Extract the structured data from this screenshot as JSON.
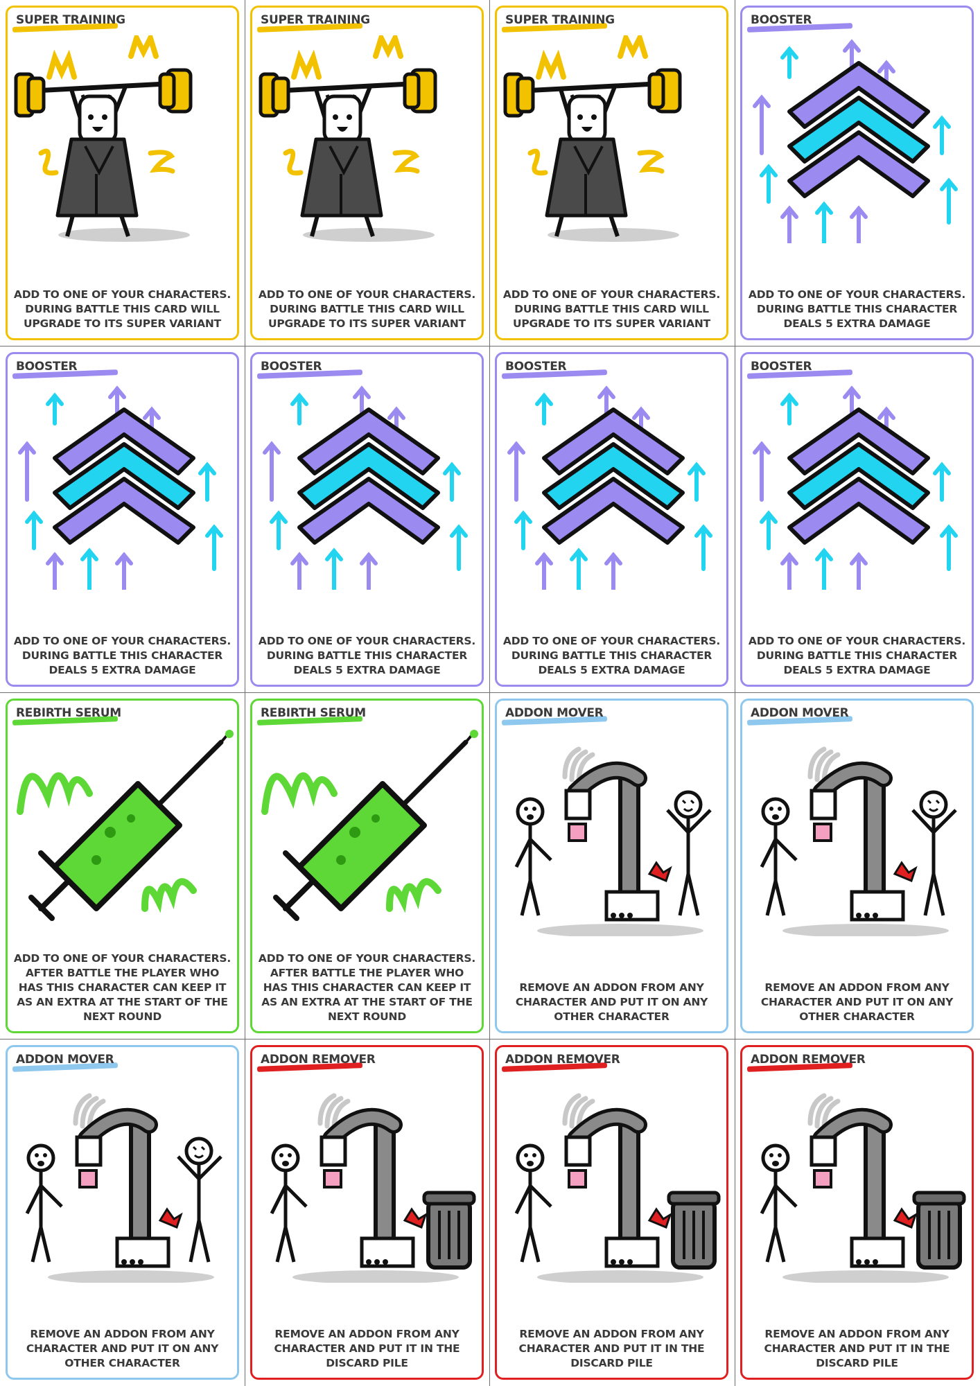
{
  "cards": [
    {
      "type": "super-training",
      "title": "SUPER TRAINING",
      "text": "ADD TO ONE OF YOUR CHARACTERS.\nDURING BATTLE THIS CARD WILL\nUPGRADE TO ITS SUPER VARIANT",
      "color": "#f2c200",
      "illustration": "weightlifter"
    },
    {
      "type": "super-training",
      "title": "SUPER TRAINING",
      "text": "ADD TO ONE OF YOUR CHARACTERS.\nDURING BATTLE THIS CARD WILL\nUPGRADE TO ITS SUPER VARIANT",
      "color": "#f2c200",
      "illustration": "weightlifter"
    },
    {
      "type": "super-training",
      "title": "SUPER TRAINING",
      "text": "ADD TO ONE OF YOUR CHARACTERS.\nDURING BATTLE THIS CARD WILL\nUPGRADE TO ITS SUPER VARIANT",
      "color": "#f2c200",
      "illustration": "weightlifter"
    },
    {
      "type": "booster",
      "title": "BOOSTER",
      "text": "ADD TO ONE OF YOUR CHARACTERS.\nDURING BATTLE THIS CHARACTER\nDEALS 5 EXTRA DAMAGE",
      "color": "#9b8af0",
      "illustration": "chevrons-arrows"
    },
    {
      "type": "booster",
      "title": "BOOSTER",
      "text": "ADD TO ONE OF YOUR CHARACTERS.\nDURING BATTLE THIS CHARACTER\nDEALS 5 EXTRA DAMAGE",
      "color": "#9b8af0",
      "illustration": "chevrons-arrows"
    },
    {
      "type": "booster",
      "title": "BOOSTER",
      "text": "ADD TO ONE OF YOUR CHARACTERS.\nDURING BATTLE THIS CHARACTER\nDEALS 5 EXTRA DAMAGE",
      "color": "#9b8af0",
      "illustration": "chevrons-arrows"
    },
    {
      "type": "booster",
      "title": "BOOSTER",
      "text": "ADD TO ONE OF YOUR CHARACTERS.\nDURING BATTLE THIS CHARACTER\nDEALS 5 EXTRA DAMAGE",
      "color": "#9b8af0",
      "illustration": "chevrons-arrows"
    },
    {
      "type": "booster",
      "title": "BOOSTER",
      "text": "ADD TO ONE OF YOUR CHARACTERS.\nDURING BATTLE THIS CHARACTER\nDEALS 5 EXTRA DAMAGE",
      "color": "#9b8af0",
      "illustration": "chevrons-arrows"
    },
    {
      "type": "rebirth-serum",
      "title": "REBIRTH SERUM",
      "text": "ADD TO ONE OF YOUR CHARACTERS.\nAFTER BATTLE THE PLAYER WHO\nHAS THIS CHARACTER CAN KEEP IT\nAS AN EXTRA AT THE START OF THE\nNEXT ROUND",
      "color": "#5ed836",
      "illustration": "syringe"
    },
    {
      "type": "rebirth-serum",
      "title": "REBIRTH SERUM",
      "text": "ADD TO ONE OF YOUR CHARACTERS.\nAFTER BATTLE THE PLAYER WHO\nHAS THIS CHARACTER CAN KEEP IT\nAS AN EXTRA AT THE START OF THE\nNEXT ROUND",
      "color": "#5ed836",
      "illustration": "syringe"
    },
    {
      "type": "addon-mover",
      "title": "ADDON MOVER",
      "text": "REMOVE AN ADDON FROM ANY\nCHARACTER AND PUT IT ON ANY\nOTHER CHARACTER",
      "color": "#8ec8ee",
      "illustration": "robot-arm-cheering"
    },
    {
      "type": "addon-mover",
      "title": "ADDON MOVER",
      "text": "REMOVE AN ADDON FROM ANY\nCHARACTER AND PUT IT ON ANY\nOTHER CHARACTER",
      "color": "#8ec8ee",
      "illustration": "robot-arm-cheering"
    },
    {
      "type": "addon-mover",
      "title": "ADDON MOVER",
      "text": "REMOVE AN ADDON FROM ANY\nCHARACTER AND PUT IT ON ANY\nOTHER CHARACTER",
      "color": "#8ec8ee",
      "illustration": "robot-arm-cheering"
    },
    {
      "type": "addon-remover",
      "title": "ADDON REMOVER",
      "text": "REMOVE AN ADDON FROM ANY\nCHARACTER AND PUT IT IN THE\nDISCARD PILE",
      "color": "#e02020",
      "illustration": "robot-arm-trashcan"
    },
    {
      "type": "addon-remover",
      "title": "ADDON REMOVER",
      "text": "REMOVE AN ADDON FROM ANY\nCHARACTER AND PUT IT IN THE\nDISCARD PILE",
      "color": "#e02020",
      "illustration": "robot-arm-trashcan"
    },
    {
      "type": "addon-remover",
      "title": "ADDON REMOVER",
      "text": "REMOVE AN ADDON FROM ANY\nCHARACTER AND PUT IT IN THE\nDISCARD PILE",
      "color": "#e02020",
      "illustration": "robot-arm-trashcan"
    }
  ]
}
